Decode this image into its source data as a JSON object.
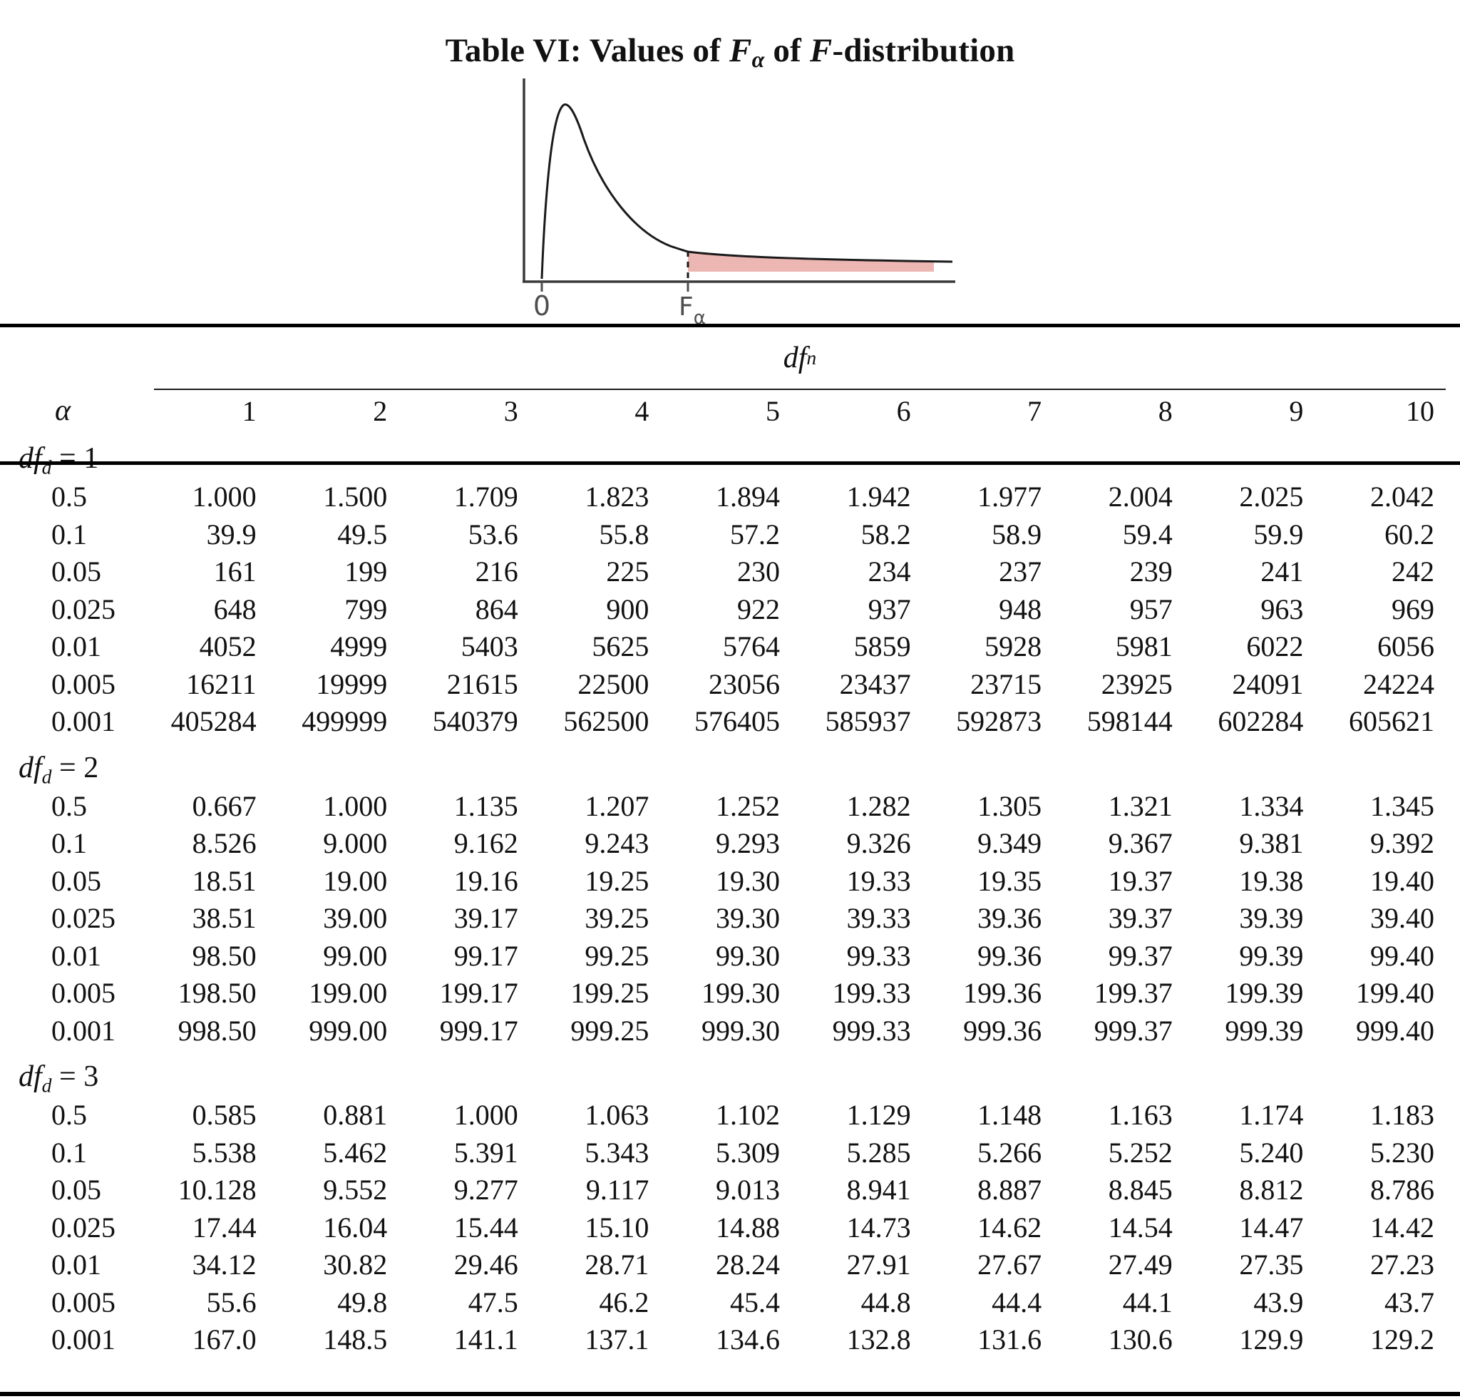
{
  "title": {
    "prefix": "Table VI: Values of ",
    "f_symbol": "F",
    "alpha_sub": "α",
    "middle": " of ",
    "f_symbol2": "F",
    "suffix": "-distribution"
  },
  "figure": {
    "origin_label": "0",
    "critical_value_label": {
      "base": "F",
      "sub": "α"
    },
    "shade_color": "#ecb6b2",
    "curve_color": "#1a1a1a",
    "axis_color": "#3a3a3a",
    "label_color": "#4d4d4d"
  },
  "table": {
    "group_header": {
      "text": "df",
      "sub": "n"
    },
    "alpha_header": "α",
    "columns": [
      "1",
      "2",
      "3",
      "4",
      "5",
      "6",
      "7",
      "8",
      "9",
      "10"
    ],
    "sections": [
      {
        "label": {
          "text": "df",
          "sub": "d",
          "eq": "= 1"
        },
        "rows": [
          [
            "0.5",
            "1.000",
            "1.500",
            "1.709",
            "1.823",
            "1.894",
            "1.942",
            "1.977",
            "2.004",
            "2.025",
            "2.042"
          ],
          [
            "0.1",
            "39.9",
            "49.5",
            "53.6",
            "55.8",
            "57.2",
            "58.2",
            "58.9",
            "59.4",
            "59.9",
            "60.2"
          ],
          [
            "0.05",
            "161",
            "199",
            "216",
            "225",
            "230",
            "234",
            "237",
            "239",
            "241",
            "242"
          ],
          [
            "0.025",
            "648",
            "799",
            "864",
            "900",
            "922",
            "937",
            "948",
            "957",
            "963",
            "969"
          ],
          [
            "0.01",
            "4052",
            "4999",
            "5403",
            "5625",
            "5764",
            "5859",
            "5928",
            "5981",
            "6022",
            "6056"
          ],
          [
            "0.005",
            "16211",
            "19999",
            "21615",
            "22500",
            "23056",
            "23437",
            "23715",
            "23925",
            "24091",
            "24224"
          ],
          [
            "0.001",
            "405284",
            "499999",
            "540379",
            "562500",
            "576405",
            "585937",
            "592873",
            "598144",
            "602284",
            "605621"
          ]
        ]
      },
      {
        "label": {
          "text": "df",
          "sub": "d",
          "eq": "= 2"
        },
        "rows": [
          [
            "0.5",
            "0.667",
            "1.000",
            "1.135",
            "1.207",
            "1.252",
            "1.282",
            "1.305",
            "1.321",
            "1.334",
            "1.345"
          ],
          [
            "0.1",
            "8.526",
            "9.000",
            "9.162",
            "9.243",
            "9.293",
            "9.326",
            "9.349",
            "9.367",
            "9.381",
            "9.392"
          ],
          [
            "0.05",
            "18.51",
            "19.00",
            "19.16",
            "19.25",
            "19.30",
            "19.33",
            "19.35",
            "19.37",
            "19.38",
            "19.40"
          ],
          [
            "0.025",
            "38.51",
            "39.00",
            "39.17",
            "39.25",
            "39.30",
            "39.33",
            "39.36",
            "39.37",
            "39.39",
            "39.40"
          ],
          [
            "0.01",
            "98.50",
            "99.00",
            "99.17",
            "99.25",
            "99.30",
            "99.33",
            "99.36",
            "99.37",
            "99.39",
            "99.40"
          ],
          [
            "0.005",
            "198.50",
            "199.00",
            "199.17",
            "199.25",
            "199.30",
            "199.33",
            "199.36",
            "199.37",
            "199.39",
            "199.40"
          ],
          [
            "0.001",
            "998.50",
            "999.00",
            "999.17",
            "999.25",
            "999.30",
            "999.33",
            "999.36",
            "999.37",
            "999.39",
            "999.40"
          ]
        ]
      },
      {
        "label": {
          "text": "df",
          "sub": "d",
          "eq": "= 3"
        },
        "rows": [
          [
            "0.5",
            "0.585",
            "0.881",
            "1.000",
            "1.063",
            "1.102",
            "1.129",
            "1.148",
            "1.163",
            "1.174",
            "1.183"
          ],
          [
            "0.1",
            "5.538",
            "5.462",
            "5.391",
            "5.343",
            "5.309",
            "5.285",
            "5.266",
            "5.252",
            "5.240",
            "5.230"
          ],
          [
            "0.05",
            "10.128",
            "9.552",
            "9.277",
            "9.117",
            "9.013",
            "8.941",
            "8.887",
            "8.845",
            "8.812",
            "8.786"
          ],
          [
            "0.025",
            "17.44",
            "16.04",
            "15.44",
            "15.10",
            "14.88",
            "14.73",
            "14.62",
            "14.54",
            "14.47",
            "14.42"
          ],
          [
            "0.01",
            "34.12",
            "30.82",
            "29.46",
            "28.71",
            "28.24",
            "27.91",
            "27.67",
            "27.49",
            "27.35",
            "27.23"
          ],
          [
            "0.005",
            "55.6",
            "49.8",
            "47.5",
            "46.2",
            "45.4",
            "44.8",
            "44.4",
            "44.1",
            "43.9",
            "43.7"
          ],
          [
            "0.001",
            "167.0",
            "148.5",
            "141.1",
            "137.1",
            "134.6",
            "132.8",
            "131.6",
            "130.6",
            "129.9",
            "129.2"
          ]
        ]
      }
    ]
  }
}
